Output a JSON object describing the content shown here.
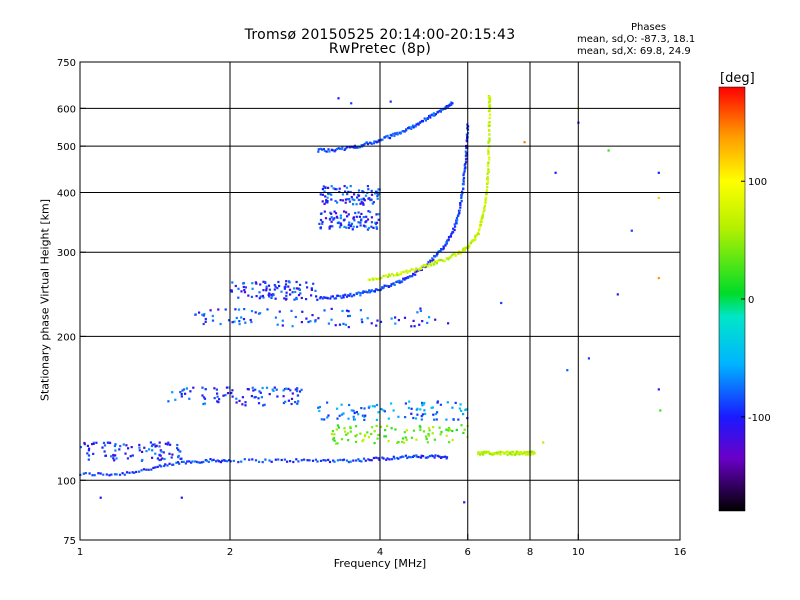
{
  "chart_data": {
    "type": "scatter",
    "title": "Tromsø 20150525 20:14:00-20:15:43",
    "subtitle": "RwPretec (8p)",
    "phase_info": {
      "heading": "Phases",
      "line_o": "mean, sd,O: -87.3, 18.1",
      "line_x": "mean, sd,X:  69.8, 24.9"
    },
    "xlabel": "Frequency [MHz]",
    "ylabel": "Stationary phase Virtual Height [km]",
    "xscale": "log",
    "yscale": "log",
    "xlim": [
      1,
      16
    ],
    "ylim": [
      75,
      750
    ],
    "x_ticks": [
      1,
      2,
      4,
      6,
      8,
      10,
      16
    ],
    "x_tick_labels": [
      "1",
      "2",
      "4",
      "6",
      "8",
      "10",
      "16"
    ],
    "x_grid": [
      2,
      4,
      6,
      8,
      10
    ],
    "y_ticks": [
      75,
      100,
      200,
      300,
      400,
      500,
      600,
      750
    ],
    "y_tick_labels": [
      "75",
      "100",
      "200",
      "300",
      "400",
      "500",
      "600",
      "750"
    ],
    "y_grid": [
      100,
      200,
      300,
      400,
      500,
      600
    ],
    "grid": true,
    "colorbar": {
      "label": "[deg]",
      "range": [
        -180,
        180
      ],
      "ticks": [
        100,
        0,
        -100
      ],
      "tick_labels": [
        "100",
        "0",
        "-100"
      ]
    },
    "traces": [
      {
        "name": "E-layer O-mode",
        "phase": -90,
        "points": [
          [
            1.0,
            103
          ],
          [
            1.2,
            103
          ],
          [
            1.4,
            106
          ],
          [
            1.6,
            109
          ],
          [
            1.8,
            110
          ],
          [
            2.0,
            110
          ],
          [
            2.5,
            110
          ],
          [
            3.0,
            110
          ],
          [
            3.5,
            110
          ],
          [
            4.0,
            111
          ],
          [
            4.5,
            112
          ],
          [
            5.0,
            112
          ],
          [
            5.5,
            112
          ]
        ]
      },
      {
        "name": "F-layer O-mode",
        "phase": -90,
        "points": [
          [
            3.0,
            240
          ],
          [
            3.3,
            242
          ],
          [
            3.6,
            245
          ],
          [
            3.9,
            250
          ],
          [
            4.2,
            256
          ],
          [
            4.5,
            264
          ],
          [
            4.8,
            275
          ],
          [
            5.1,
            290
          ],
          [
            5.4,
            310
          ],
          [
            5.6,
            330
          ],
          [
            5.75,
            360
          ],
          [
            5.85,
            400
          ],
          [
            5.92,
            450
          ],
          [
            5.97,
            500
          ],
          [
            6.0,
            560
          ]
        ]
      },
      {
        "name": "F-layer X-mode",
        "phase": 70,
        "points": [
          [
            3.8,
            262
          ],
          [
            4.2,
            268
          ],
          [
            4.6,
            275
          ],
          [
            5.0,
            282
          ],
          [
            5.4,
            290
          ],
          [
            5.8,
            300
          ],
          [
            6.1,
            312
          ],
          [
            6.3,
            330
          ],
          [
            6.45,
            360
          ],
          [
            6.55,
            400
          ],
          [
            6.6,
            450
          ],
          [
            6.62,
            520
          ],
          [
            6.63,
            600
          ],
          [
            6.63,
            640
          ]
        ]
      },
      {
        "name": "Second-hop O-mode",
        "phase": -85,
        "points": [
          [
            3.0,
            490
          ],
          [
            3.3,
            492
          ],
          [
            3.6,
            500
          ],
          [
            3.9,
            510
          ],
          [
            4.2,
            525
          ],
          [
            4.5,
            540
          ],
          [
            4.8,
            560
          ],
          [
            5.1,
            580
          ],
          [
            5.4,
            600
          ],
          [
            5.6,
            620
          ]
        ]
      },
      {
        "name": "E-layer X-mode",
        "phase": 60,
        "points": [
          [
            6.3,
            114
          ],
          [
            6.6,
            114
          ],
          [
            7.0,
            114
          ],
          [
            7.4,
            114
          ],
          [
            7.8,
            114
          ],
          [
            8.2,
            114
          ]
        ]
      }
    ],
    "bands": [
      {
        "f0": 1.0,
        "f1": 1.6,
        "h": 115,
        "phase": -95
      },
      {
        "f0": 1.5,
        "f1": 2.8,
        "h": 150,
        "phase": -90
      },
      {
        "f0": 2.0,
        "f1": 3.0,
        "h": 250,
        "phase": -95
      },
      {
        "f0": 1.7,
        "f1": 5.5,
        "h": 219,
        "phase": -90
      },
      {
        "f0": 3.0,
        "f1": 4.0,
        "h": 395,
        "phase": -92
      },
      {
        "f0": 3.0,
        "f1": 4.0,
        "h": 350,
        "phase": -92
      },
      {
        "f0": 3.0,
        "f1": 6.0,
        "h": 140,
        "phase": -70
      },
      {
        "f0": 3.2,
        "f1": 6.0,
        "h": 125,
        "phase": 40
      }
    ],
    "scatter_points": [
      {
        "x": 3.3,
        "y": 630,
        "phase": -100
      },
      {
        "x": 3.5,
        "y": 615,
        "phase": -90
      },
      {
        "x": 4.2,
        "y": 620,
        "phase": -95
      },
      {
        "x": 7.8,
        "y": 510,
        "phase": 150
      },
      {
        "x": 9.0,
        "y": 440,
        "phase": -100
      },
      {
        "x": 10.0,
        "y": 560,
        "phase": -95
      },
      {
        "x": 10.0,
        "y": 600,
        "phase": 100
      },
      {
        "x": 11.5,
        "y": 490,
        "phase": 20
      },
      {
        "x": 14.5,
        "y": 440,
        "phase": -100
      },
      {
        "x": 14.5,
        "y": 390,
        "phase": 120
      },
      {
        "x": 14.5,
        "y": 265,
        "phase": 140
      },
      {
        "x": 12.0,
        "y": 245,
        "phase": -100
      },
      {
        "x": 14.5,
        "y": 155,
        "phase": -110
      },
      {
        "x": 14.6,
        "y": 140,
        "phase": 20
      },
      {
        "x": 10.5,
        "y": 180,
        "phase": -90
      },
      {
        "x": 9.5,
        "y": 170,
        "phase": -80
      },
      {
        "x": 7.0,
        "y": 235,
        "phase": -90
      },
      {
        "x": 8.5,
        "y": 120,
        "phase": 60
      },
      {
        "x": 5.9,
        "y": 90,
        "phase": -100
      },
      {
        "x": 1.6,
        "y": 92,
        "phase": -100
      },
      {
        "x": 1.1,
        "y": 92,
        "phase": -100
      },
      {
        "x": 12.8,
        "y": 333,
        "phase": -90
      }
    ],
    "colormap": [
      {
        "p": -180,
        "c": "#000000"
      },
      {
        "p": -135,
        "c": "#6a00c8"
      },
      {
        "p": -100,
        "c": "#1a1aff"
      },
      {
        "p": -55,
        "c": "#00b4ff"
      },
      {
        "p": -15,
        "c": "#00e6c8"
      },
      {
        "p": 5,
        "c": "#00dc28"
      },
      {
        "p": 60,
        "c": "#b4f000"
      },
      {
        "p": 100,
        "c": "#ffff00"
      },
      {
        "p": 140,
        "c": "#ff9600"
      },
      {
        "p": 180,
        "c": "#ff0000"
      }
    ]
  }
}
